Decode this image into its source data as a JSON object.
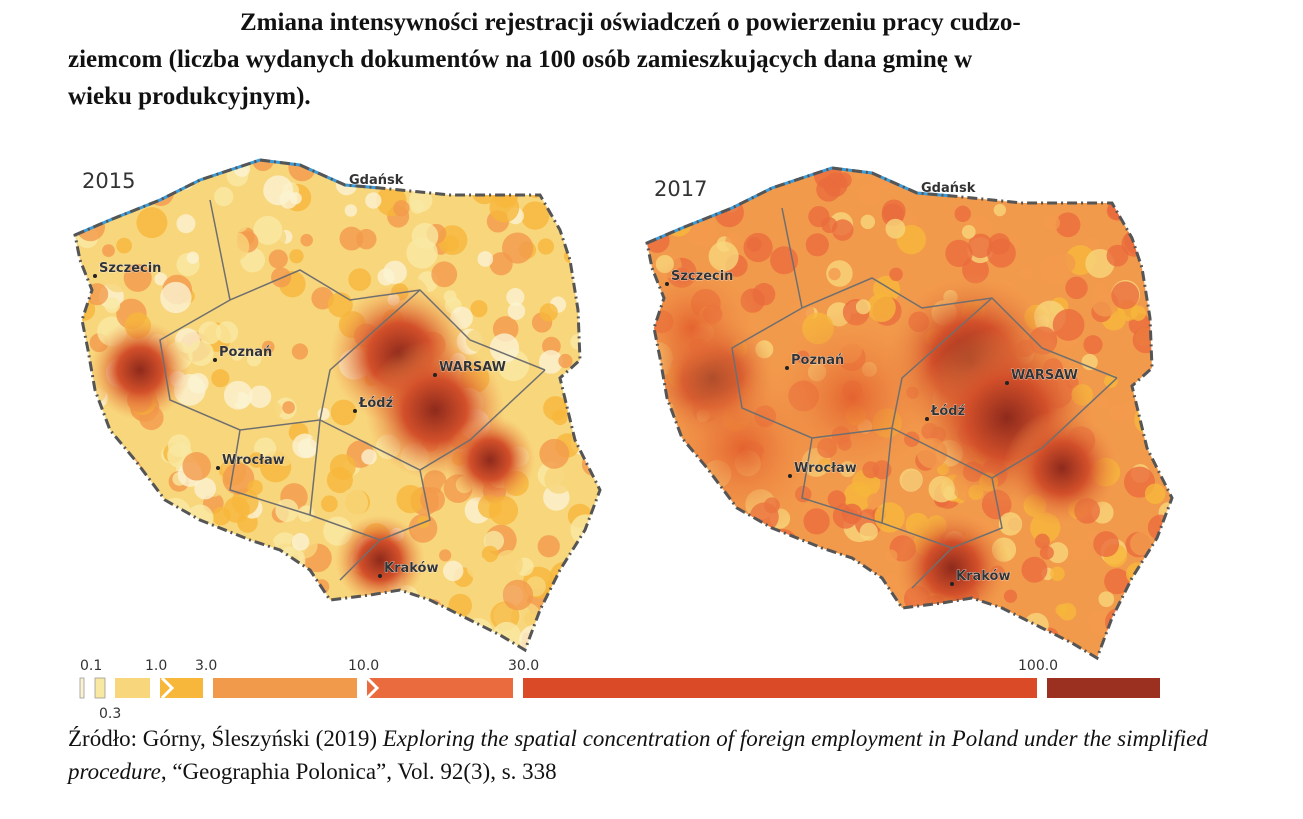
{
  "title": [
    "Zmiana intensywności rejestracji oświadczeń o powierzeniu pracy cudzo-",
    "ziemcom (liczba wydanych dokumentów na 100 osób zamieszkujących dana gminę w",
    "wieku produkcyjnym)."
  ],
  "maps": [
    {
      "year": "2015",
      "cities": [
        "Gdańsk",
        "Szczecin",
        "Poznań",
        "WARSAW",
        "Łódź",
        "Wrocław",
        "Kraków"
      ]
    },
    {
      "year": "2017",
      "cities": [
        "Gdańsk",
        "Szczecin",
        "Poznań",
        "WARSAW",
        "Łódź",
        "Wrocław",
        "Kraków"
      ]
    }
  ],
  "legend": {
    "ticks": [
      "0.1",
      "0.3",
      "1.0",
      "3.0",
      "10.0",
      "30.0",
      "100.0"
    ],
    "colors": [
      "#fbf2d2",
      "#f9e8a2",
      "#f8d67c",
      "#f6b73b",
      "#f29a4c",
      "#ea6b3d",
      "#da4a27",
      "#9b2f20"
    ]
  },
  "source": {
    "authors": "Źródło: Górny, Śleszyński (2019) ",
    "work": "Exploring the spatial concentration of foreign employment in Poland under the simplified procedure",
    "journal": ", “Geographia Polonica”, Vol. 92(3), s. 338"
  }
}
